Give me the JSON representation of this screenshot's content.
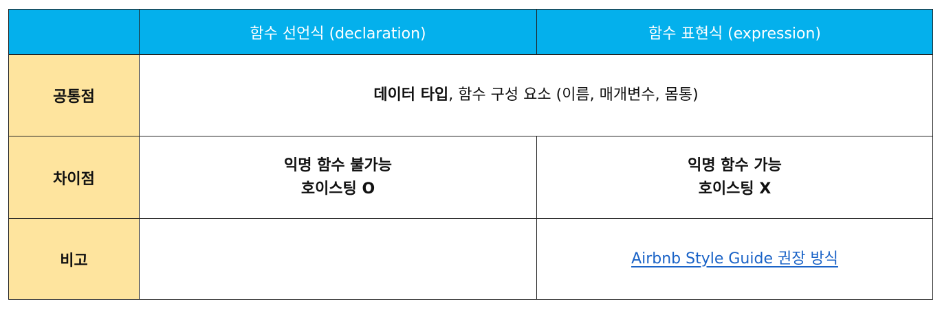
{
  "table": {
    "header": {
      "corner": "",
      "declaration": "함수 선언식 (declaration)",
      "expression": "함수 표현식 (expression)"
    },
    "rows": {
      "common": {
        "label": "공통점",
        "bold_text": "데이터 타입",
        "rest_text": ", 함수 구성 요소 (이름, 매개변수, 몸통)"
      },
      "difference": {
        "label": "차이점",
        "declaration_line1": "익명 함수 불가능",
        "declaration_line2": "호이스팅 O",
        "expression_line1": "익명 함수 가능",
        "expression_line2": "호이스팅 X"
      },
      "note": {
        "label": "비고",
        "declaration": "",
        "expression_link": "Airbnb Style Guide 권장 방식"
      }
    },
    "colors": {
      "header_bg": "#04b0ec",
      "label_bg": "#fee49e",
      "link": "#1a63c7",
      "border": "#222222"
    }
  }
}
